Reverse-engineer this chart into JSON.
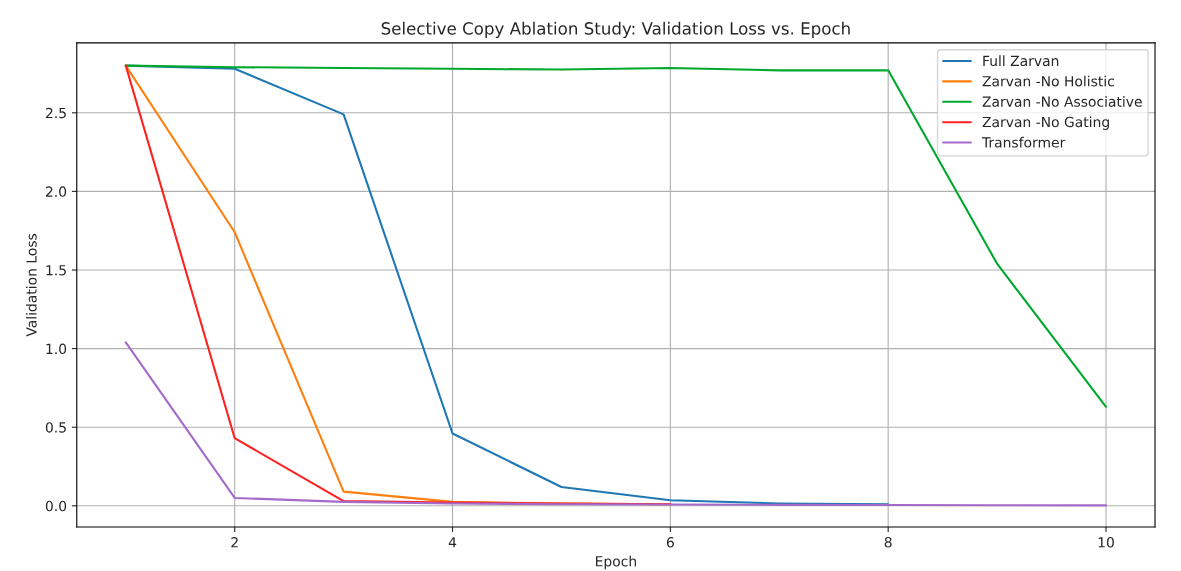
{
  "chart_data": {
    "type": "line",
    "title": "Selective Copy Ablation Study: Validation Loss vs. Epoch",
    "xlabel": "Epoch",
    "ylabel": "Validation Loss",
    "x": [
      1,
      2,
      3,
      4,
      5,
      6,
      7,
      8,
      9,
      10
    ],
    "series": [
      {
        "name": "Full Zarvan",
        "color": "#1f77b4",
        "values": [
          2.8,
          2.78,
          2.49,
          0.46,
          0.12,
          0.035,
          0.015,
          0.01,
          null,
          null
        ]
      },
      {
        "name": "Zarvan -No Holistic",
        "color": "#ff7f0e",
        "values": [
          2.8,
          1.74,
          0.09,
          0.025,
          0.015,
          0.01,
          null,
          null,
          null,
          null
        ]
      },
      {
        "name": "Zarvan -No Associative",
        "color": "#00a82d",
        "values": [
          2.8,
          2.79,
          2.785,
          2.78,
          2.775,
          2.785,
          2.77,
          2.77,
          1.54,
          0.63
        ]
      },
      {
        "name": "Zarvan -No Gating",
        "color": "#ff2020",
        "values": [
          2.8,
          0.43,
          0.03,
          0.02,
          0.015,
          0.01,
          null,
          null,
          null,
          null
        ]
      },
      {
        "name": "Transformer",
        "color": "#a569c9",
        "values": [
          1.04,
          0.05,
          0.025,
          0.015,
          0.01,
          0.008,
          0.006,
          0.005,
          0.004,
          0.003
        ]
      }
    ],
    "xlim": [
      0.55,
      10.45
    ],
    "xticks": [
      2,
      4,
      6,
      8,
      10
    ],
    "ylim": [
      -0.135,
      2.945
    ],
    "yticks": [
      {
        "value": 0,
        "label": "0.0"
      },
      {
        "value": 0.5,
        "label": "0.5"
      },
      {
        "value": 1,
        "label": "1.0"
      },
      {
        "value": 1.5,
        "label": "1.5"
      },
      {
        "value": 2,
        "label": "2.0"
      },
      {
        "value": 2.5,
        "label": "2.5"
      }
    ],
    "grid": true,
    "legend": "top right",
    "line_style": "solid",
    "marker": "none"
  }
}
